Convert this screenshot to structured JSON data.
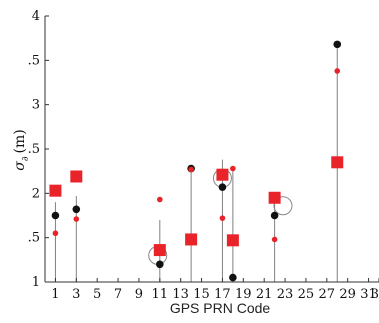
{
  "chart_data": {
    "type": "scatter",
    "title": "",
    "xlabel": "GPS PRN Code",
    "ylabel": "σ",
    "ylabel_subscript": "∂",
    "ylabel_unit": "(m)",
    "xlim": [
      0,
      32
    ],
    "ylim": [
      1,
      4
    ],
    "xticks": [
      1,
      3,
      5,
      7,
      9,
      11,
      13,
      15,
      17,
      19,
      21,
      23,
      25,
      27,
      29,
      31,
      32
    ],
    "yticks": [
      1,
      2,
      3,
      4
    ],
    "ytick_labels": [
      "1",
      "2",
      "3",
      "4"
    ],
    "ytick_minor_values": [
      1.5,
      2.5,
      3.5
    ],
    "ytick_minor_labels": [
      ".5",
      ".5",
      ".5"
    ],
    "grid": false,
    "colors": {
      "stem": "#808080",
      "black": "#111111",
      "red": "#e8232a",
      "circle": "#888888"
    },
    "stems": [
      {
        "x": 1,
        "top": 1.9
      },
      {
        "x": 3,
        "top": 1.97
      },
      {
        "x": 11,
        "top": 1.7
      },
      {
        "x": 14,
        "top": 2.32
      },
      {
        "x": 17,
        "top": 2.38
      },
      {
        "x": 18,
        "top": 2.3
      },
      {
        "x": 22,
        "top": 1.9
      },
      {
        "x": 28,
        "top": 3.68
      }
    ],
    "series": [
      {
        "marker": "black-circle",
        "points": [
          [
            1,
            1.75
          ],
          [
            3,
            1.82
          ],
          [
            11,
            1.2
          ],
          [
            14,
            2.28
          ],
          [
            17,
            2.07
          ],
          [
            18,
            1.05
          ],
          [
            22,
            1.75
          ],
          [
            28,
            3.68
          ]
        ]
      },
      {
        "marker": "red-dot",
        "points": [
          [
            1,
            1.55
          ],
          [
            3,
            1.71
          ],
          [
            11,
            1.93
          ],
          [
            14,
            2.27
          ],
          [
            17,
            1.72
          ],
          [
            18,
            2.28
          ],
          [
            22,
            1.48
          ],
          [
            28,
            3.38
          ]
        ]
      },
      {
        "marker": "red-square",
        "points": [
          [
            1,
            2.03
          ],
          [
            3,
            2.19
          ],
          [
            11,
            1.36
          ],
          [
            14,
            1.48
          ],
          [
            17,
            2.21
          ],
          [
            18,
            1.47
          ],
          [
            22,
            1.95
          ],
          [
            28,
            2.35
          ]
        ]
      }
    ],
    "circle_markers": [
      [
        10.8,
        1.3
      ],
      [
        17,
        2.17
      ],
      [
        22.8,
        1.86
      ]
    ]
  }
}
